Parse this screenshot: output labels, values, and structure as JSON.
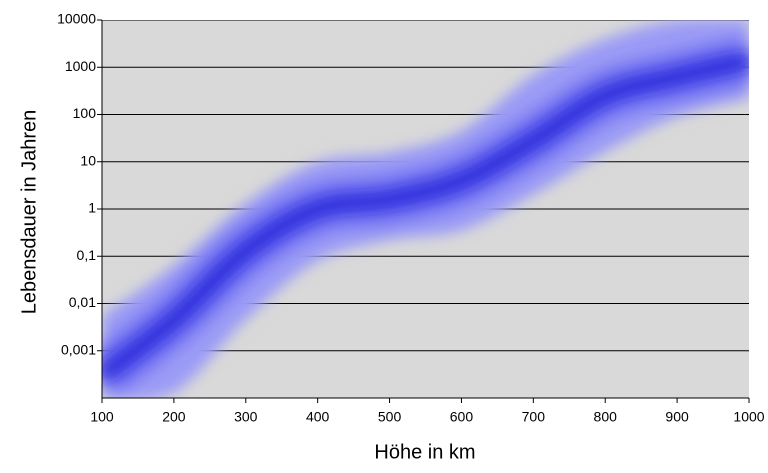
{
  "chart_data": {
    "type": "band",
    "x_label": "Höhe in km",
    "y_label": "Lebensdauer in Jahren",
    "x": [
      100,
      200,
      300,
      400,
      500,
      600,
      700,
      800,
      900,
      1000
    ],
    "series": [
      {
        "color": "#9c9cf6",
        "values": [
          0.0056,
          0.063,
          1.3,
          10,
          16,
          45,
          700,
          4000,
          10000,
          10000
        ]
      },
      {
        "color": "#2020d4",
        "values": [
          0.0003,
          0.0045,
          0.13,
          1,
          1.6,
          4,
          28,
          250,
          630,
          1400
        ]
      },
      {
        "color": "#9c9cf6",
        "values": [
          0.0001,
          0.00013,
          0.0045,
          0.08,
          0.22,
          0.35,
          2,
          16,
          90,
          220
        ]
      }
    ],
    "xlim": [
      100,
      1000
    ],
    "xticks": [
      100,
      200,
      300,
      400,
      500,
      600,
      700,
      800,
      900,
      1000
    ],
    "ylim": [
      0.0001,
      10000
    ],
    "ylog": true,
    "yticks": [
      {
        "value": 0.001,
        "label": "0,001"
      },
      {
        "value": 0.01,
        "label": "0,01"
      },
      {
        "value": 0.1,
        "label": "0,1"
      },
      1,
      10,
      100,
      1000,
      10000
    ],
    "grid": true,
    "plot_color": "#d9d9d9"
  }
}
